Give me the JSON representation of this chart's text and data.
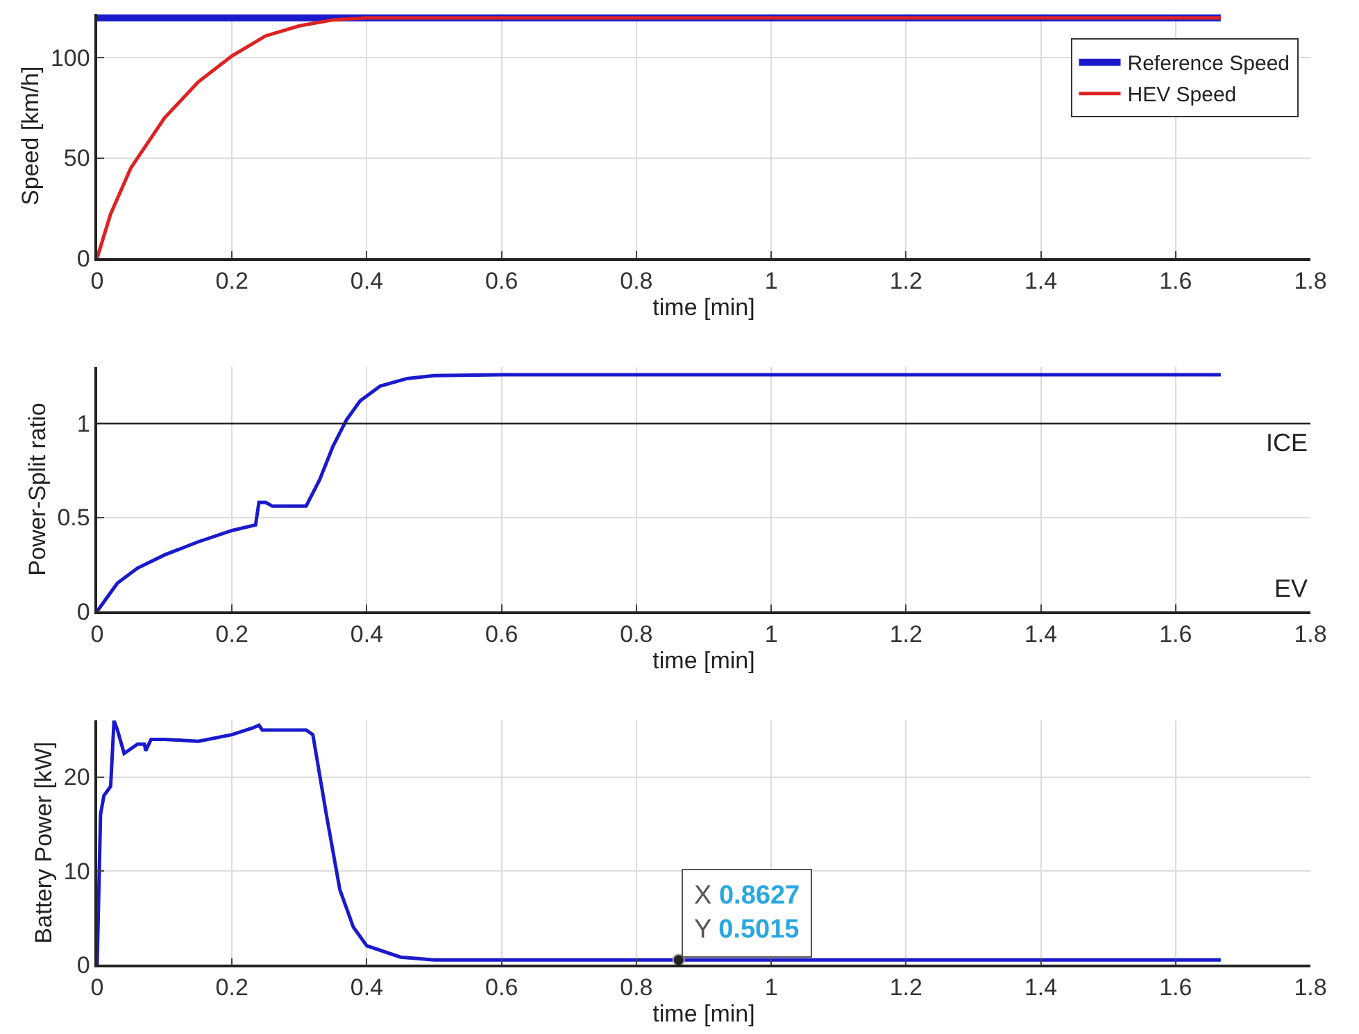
{
  "chart_data": [
    {
      "type": "line",
      "xlabel": "time [min]",
      "ylabel": "Speed [km/h]",
      "xlim": [
        0,
        1.8
      ],
      "xticks": [
        0,
        0.2,
        0.4,
        0.6,
        0.8,
        1,
        1.2,
        1.4,
        1.6,
        1.8
      ],
      "ylim": [
        0,
        122
      ],
      "yticks": [
        0,
        50,
        100
      ],
      "grid": true,
      "legend": "top right",
      "series": [
        {
          "name": "Reference Speed",
          "color": "#1a1acc",
          "x": [
            0,
            1.667
          ],
          "values": [
            120,
            120
          ]
        },
        {
          "name": "HEV Speed",
          "color": "#dd2222",
          "x": [
            0,
            0.02,
            0.05,
            0.1,
            0.15,
            0.2,
            0.25,
            0.3,
            0.35,
            0.4,
            1.667
          ],
          "values": [
            0,
            22,
            45,
            70,
            88,
            101,
            111,
            116,
            119,
            120,
            120
          ]
        }
      ]
    },
    {
      "type": "line",
      "xlabel": "time [min]",
      "ylabel": "Power-Split ratio",
      "xlim": [
        0,
        1.8
      ],
      "xticks": [
        0,
        0.2,
        0.4,
        0.6,
        0.8,
        1,
        1.2,
        1.4,
        1.6,
        1.8
      ],
      "ylim": [
        0,
        1.3
      ],
      "yticks": [
        0,
        0.5,
        1
      ],
      "grid": true,
      "ref_lines": [
        {
          "axis": "y",
          "value": 1,
          "label": "ICE",
          "color": "#222222"
        }
      ],
      "annotations": [
        "EV"
      ],
      "series": [
        {
          "color": "#1a1acc",
          "x": [
            0,
            0.01,
            0.03,
            0.06,
            0.1,
            0.15,
            0.2,
            0.235,
            0.24,
            0.25,
            0.26,
            0.31,
            0.33,
            0.35,
            0.37,
            0.39,
            0.42,
            0.46,
            0.5,
            0.6,
            1.667
          ],
          "values": [
            0,
            0.05,
            0.15,
            0.23,
            0.3,
            0.37,
            0.43,
            0.46,
            0.58,
            0.58,
            0.56,
            0.56,
            0.7,
            0.88,
            1.02,
            1.12,
            1.2,
            1.24,
            1.255,
            1.26,
            1.26
          ]
        }
      ]
    },
    {
      "type": "line",
      "xlabel": "time [min]",
      "ylabel": "Battery Power [kW]",
      "xlim": [
        0,
        1.8
      ],
      "xticks": [
        0,
        0.2,
        0.4,
        0.6,
        0.8,
        1,
        1.2,
        1.4,
        1.6,
        1.8
      ],
      "ylim": [
        0,
        26
      ],
      "yticks": [
        0,
        10,
        20
      ],
      "grid": true,
      "annotations": [
        {
          "text": "X 0.8627\nY 0.5015",
          "x": 0.8627,
          "y": 0.5015
        }
      ],
      "series": [
        {
          "color": "#1a1acc",
          "x": [
            0,
            0.005,
            0.01,
            0.02,
            0.025,
            0.03,
            0.04,
            0.05,
            0.06,
            0.07,
            0.072,
            0.08,
            0.1,
            0.15,
            0.2,
            0.23,
            0.24,
            0.245,
            0.31,
            0.32,
            0.34,
            0.36,
            0.38,
            0.4,
            0.45,
            0.5,
            0.8627,
            1.667
          ],
          "values": [
            0,
            16,
            18,
            19,
            26,
            25,
            22.5,
            23,
            23.5,
            23.5,
            22.8,
            24,
            24,
            23.8,
            24.5,
            25.2,
            25.5,
            25,
            25,
            24.5,
            16,
            8,
            4,
            2,
            0.8,
            0.5,
            0.5,
            0.5
          ]
        }
      ]
    }
  ]
}
